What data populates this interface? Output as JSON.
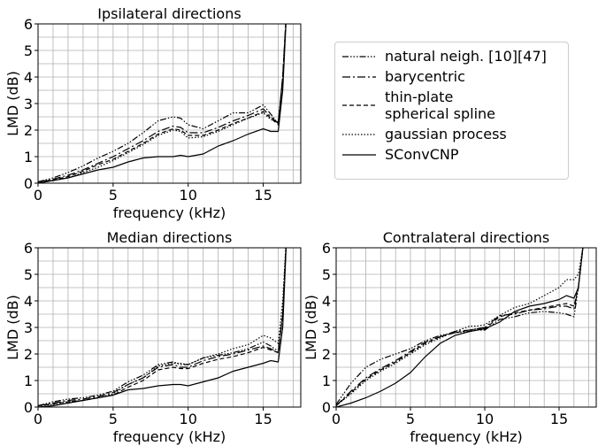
{
  "chart_data": [
    {
      "type": "line",
      "title": "Ipsilateral directions",
      "xlabel": "frequency (kHz)",
      "ylabel": "LMD (dB)",
      "x": [
        0,
        1,
        2,
        3,
        4,
        5,
        6,
        7,
        8,
        9,
        9.5,
        10,
        11,
        12,
        13,
        14,
        15,
        15.5,
        16,
        16.3,
        16.6
      ],
      "xlim": [
        0,
        17.5
      ],
      "ylim": [
        0,
        6
      ],
      "xticks": [
        0,
        5,
        10,
        15
      ],
      "yticks": [
        0,
        1,
        2,
        3,
        4,
        5,
        6
      ],
      "xminorticks": [
        1,
        2,
        3,
        4,
        6,
        7,
        8,
        9,
        11,
        12,
        13,
        14,
        16,
        17
      ],
      "yminorticks": [
        0.5,
        1.5,
        2.5,
        3.5,
        4.5,
        5.5
      ],
      "grid": true,
      "series": [
        {
          "name": "natural neigh. [10][47]",
          "color": "#000000",
          "dash": "7,2,1.5,2,1.5,2,1.5,2",
          "values": [
            0.05,
            0.2,
            0.4,
            0.65,
            0.95,
            1.2,
            1.5,
            1.9,
            2.35,
            2.5,
            2.45,
            2.2,
            2.05,
            2.35,
            2.65,
            2.65,
            2.95,
            2.6,
            2.25,
            4,
            7
          ]
        },
        {
          "name": "barycentric",
          "color": "#000000",
          "dash": "9,3,2,3",
          "values": [
            0.05,
            0.15,
            0.3,
            0.5,
            0.75,
            1.0,
            1.3,
            1.6,
            1.95,
            2.15,
            2.1,
            1.9,
            1.9,
            2.1,
            2.35,
            2.55,
            2.8,
            2.5,
            2.25,
            4,
            7
          ]
        },
        {
          "name": "thin-plate\nspherical spline",
          "color": "#000000",
          "dash": "5,3",
          "values": [
            0.05,
            0.12,
            0.25,
            0.45,
            0.7,
            0.9,
            1.2,
            1.5,
            1.85,
            2.05,
            2.0,
            1.8,
            1.8,
            2.0,
            2.25,
            2.45,
            2.7,
            2.45,
            2.2,
            4,
            7
          ]
        },
        {
          "name": "gaussian process",
          "color": "#000000",
          "dash": "1.5,2",
          "values": [
            0.05,
            0.1,
            0.2,
            0.4,
            0.6,
            0.85,
            1.15,
            1.45,
            1.8,
            2.0,
            1.95,
            1.7,
            1.75,
            1.95,
            2.2,
            2.45,
            2.65,
            2.4,
            2.3,
            4,
            7
          ]
        },
        {
          "name": "SConvCNP",
          "color": "#000000",
          "dash": "none",
          "values": [
            0,
            0.1,
            0.2,
            0.35,
            0.5,
            0.6,
            0.8,
            0.95,
            1.0,
            1.0,
            1.05,
            1.0,
            1.1,
            1.4,
            1.6,
            1.85,
            2.05,
            1.95,
            1.95,
            3.5,
            7
          ]
        }
      ]
    },
    {
      "type": "line",
      "title": "Median directions",
      "xlabel": "frequency (kHz)",
      "ylabel": "LMD (dB)",
      "x": [
        0,
        1,
        2,
        3,
        4,
        5,
        6,
        7,
        8,
        9,
        9.5,
        10,
        11,
        12,
        13,
        14,
        15,
        15.5,
        16,
        16.3,
        16.6
      ],
      "xlim": [
        0,
        17.5
      ],
      "ylim": [
        0,
        6
      ],
      "xticks": [
        0,
        5,
        10,
        15
      ],
      "yticks": [
        0,
        1,
        2,
        3,
        4,
        5,
        6
      ],
      "xminorticks": [
        1,
        2,
        3,
        4,
        6,
        7,
        8,
        9,
        11,
        12,
        13,
        14,
        16,
        17
      ],
      "yminorticks": [
        0.5,
        1.5,
        2.5,
        3.5,
        4.5,
        5.5
      ],
      "grid": true,
      "series": [
        {
          "color": "#000000",
          "dash": "7,2,1.5,2,1.5,2,1.5,2",
          "values": [
            0.05,
            0.2,
            0.3,
            0.35,
            0.45,
            0.6,
            0.95,
            1.2,
            1.6,
            1.7,
            1.6,
            1.6,
            1.85,
            1.95,
            2.05,
            2.2,
            2.45,
            2.3,
            2.1,
            3.5,
            7
          ]
        },
        {
          "color": "#000000",
          "dash": "9,3,2,3",
          "values": [
            0.05,
            0.15,
            0.25,
            0.3,
            0.4,
            0.55,
            0.85,
            1.1,
            1.5,
            1.6,
            1.5,
            1.5,
            1.75,
            1.9,
            2.0,
            2.15,
            2.3,
            2.2,
            2.05,
            3.5,
            7
          ]
        },
        {
          "color": "#000000",
          "dash": "5,3",
          "values": [
            0.05,
            0.12,
            0.2,
            0.25,
            0.35,
            0.45,
            0.75,
            1.0,
            1.4,
            1.5,
            1.45,
            1.45,
            1.65,
            1.8,
            1.9,
            2.05,
            2.25,
            2.15,
            2.05,
            3.5,
            7
          ]
        },
        {
          "color": "#000000",
          "dash": "1.5,2",
          "values": [
            0.05,
            0.1,
            0.2,
            0.25,
            0.35,
            0.5,
            0.85,
            1.1,
            1.55,
            1.65,
            1.65,
            1.6,
            1.85,
            2.0,
            2.2,
            2.35,
            2.7,
            2.6,
            2.4,
            4,
            7
          ]
        },
        {
          "color": "#000000",
          "dash": "none",
          "values": [
            0,
            0.05,
            0.15,
            0.25,
            0.35,
            0.45,
            0.65,
            0.7,
            0.8,
            0.85,
            0.85,
            0.8,
            0.95,
            1.1,
            1.35,
            1.5,
            1.65,
            1.75,
            1.7,
            3,
            7
          ]
        }
      ]
    },
    {
      "type": "line",
      "title": "Contralateral directions",
      "xlabel": "frequency (kHz)",
      "ylabel": "LMD (dB)",
      "x": [
        0,
        1,
        2,
        3,
        4,
        5,
        6,
        7,
        8,
        9,
        9.5,
        10,
        11,
        12,
        13,
        14,
        15,
        15.5,
        16,
        16.3,
        16.6
      ],
      "xlim": [
        0,
        17.5
      ],
      "ylim": [
        0,
        6
      ],
      "xticks": [
        0,
        5,
        10,
        15
      ],
      "yticks": [
        0,
        1,
        2,
        3,
        4,
        5,
        6
      ],
      "xminorticks": [
        1,
        2,
        3,
        4,
        6,
        7,
        8,
        9,
        11,
        12,
        13,
        14,
        16,
        17
      ],
      "yminorticks": [
        0.5,
        1.5,
        2.5,
        3.5,
        4.5,
        5.5
      ],
      "grid": true,
      "series": [
        {
          "color": "#000000",
          "dash": "7,2,1.5,2,1.5,2,1.5,2",
          "values": [
            0.1,
            0.9,
            1.5,
            1.8,
            2.0,
            2.2,
            2.5,
            2.7,
            2.8,
            2.85,
            2.9,
            2.9,
            3.3,
            3.4,
            3.55,
            3.6,
            3.55,
            3.5,
            3.4,
            4.5,
            6
          ]
        },
        {
          "color": "#000000",
          "dash": "9,3,2,3",
          "values": [
            0.05,
            0.6,
            1.1,
            1.45,
            1.75,
            2.1,
            2.45,
            2.65,
            2.85,
            2.9,
            2.95,
            3.0,
            3.45,
            3.5,
            3.65,
            3.7,
            3.8,
            3.8,
            3.7,
            4.5,
            6
          ]
        },
        {
          "color": "#000000",
          "dash": "5,3",
          "values": [
            0.05,
            0.55,
            1.05,
            1.4,
            1.7,
            2.05,
            2.4,
            2.65,
            2.8,
            2.9,
            2.95,
            2.95,
            3.4,
            3.55,
            3.65,
            3.75,
            3.85,
            3.9,
            3.8,
            4.5,
            6
          ]
        },
        {
          "color": "#000000",
          "dash": "1.5,2",
          "values": [
            0.05,
            0.5,
            1.0,
            1.35,
            1.65,
            2.0,
            2.35,
            2.6,
            2.85,
            3.05,
            3.05,
            3.1,
            3.45,
            3.75,
            3.9,
            4.2,
            4.5,
            4.8,
            4.8,
            5,
            6
          ]
        },
        {
          "color": "#000000",
          "dash": "none",
          "values": [
            0,
            0.15,
            0.35,
            0.6,
            0.9,
            1.3,
            1.9,
            2.4,
            2.7,
            2.85,
            2.9,
            2.95,
            3.2,
            3.6,
            3.8,
            3.9,
            4.05,
            4.2,
            4.1,
            4.5,
            6
          ]
        }
      ]
    }
  ]
}
